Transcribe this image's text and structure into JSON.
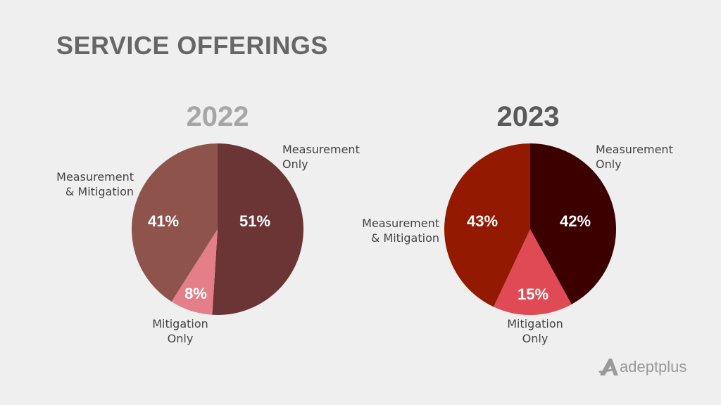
{
  "title": "SERVICE OFFERINGS",
  "logo_text": "adeptplus",
  "chart_data": [
    {
      "type": "pie",
      "title": "2022",
      "title_color": "#a6a6a6",
      "start": "12 o'clock, clockwise",
      "slices": [
        {
          "label": "Measurement Only",
          "value": 51,
          "display": "51%",
          "color": "#6b3535"
        },
        {
          "label": "Mitigation Only",
          "value": 8,
          "display": "8%",
          "color": "#e47f8a"
        },
        {
          "label": "Measurement & Mitigation",
          "value": 41,
          "display": "41%",
          "color": "#8e544c"
        }
      ],
      "labels": {
        "measurement_only": [
          "Measurement",
          "Only"
        ],
        "mitigation_only": [
          "Mitigation",
          "Only"
        ],
        "both": [
          "Measurement",
          "& Mitigation"
        ]
      }
    },
    {
      "type": "pie",
      "title": "2023",
      "title_color": "#595959",
      "start": "12 o'clock, clockwise",
      "slices": [
        {
          "label": "Measurement Only",
          "value": 42,
          "display": "42%",
          "color": "#3d0000"
        },
        {
          "label": "Mitigation Only",
          "value": 15,
          "display": "15%",
          "color": "#e04a55"
        },
        {
          "label": "Measurement & Mitigation",
          "value": 43,
          "display": "43%",
          "color": "#931a00"
        }
      ],
      "labels": {
        "measurement_only": [
          "Measurement",
          "Only"
        ],
        "mitigation_only": [
          "Mitigation",
          "Only"
        ],
        "both": [
          "Measurement",
          "& Mitigation"
        ]
      }
    }
  ]
}
